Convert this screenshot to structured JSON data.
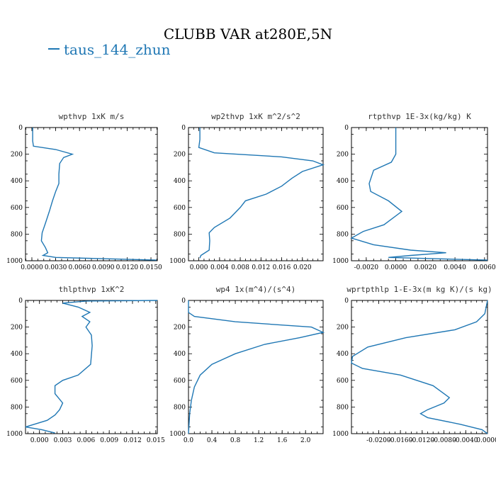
{
  "title": "CLUBB VAR at280E,5N",
  "legend": {
    "label": "taus_144_zhun",
    "color": "#1f77b4"
  },
  "chart_data": [
    {
      "type": "line",
      "title": "wpthvp  1xK m/s",
      "ylim": [
        1000,
        0
      ],
      "yticks": [
        "0",
        "200",
        "400",
        "600",
        "800",
        "1000"
      ],
      "xlim": [
        -0.0008,
        0.0158
      ],
      "xticks": [
        0.0,
        0.003,
        0.006,
        0.009,
        0.012,
        0.015
      ],
      "xticklabels": [
        "0.0000",
        "0.0030",
        "0.0060",
        "0.0090",
        "0.0120",
        "0.0150"
      ],
      "x": [
        0.0001,
        0.0001,
        0.0002,
        0.003,
        0.0051,
        0.004,
        0.0035,
        0.0034,
        0.0034,
        0.003,
        0.0026,
        0.0022,
        0.0017,
        0.0013,
        0.0012,
        0.0017,
        0.002,
        0.0014,
        0.003,
        0.0157
      ],
      "y": [
        0,
        100,
        140,
        165,
        200,
        225,
        270,
        350,
        420,
        480,
        550,
        630,
        720,
        790,
        850,
        900,
        940,
        960,
        975,
        995
      ]
    },
    {
      "type": "line",
      "title": "wp2thvp  1xK m^2/s^2",
      "ylim": [
        1000,
        0
      ],
      "yticks": [
        "0",
        "200",
        "400",
        "600",
        "800",
        "1000"
      ],
      "xlim": [
        -0.002,
        0.024
      ],
      "xticks": [
        0.0,
        0.004,
        0.008,
        0.012,
        0.016,
        0.02
      ],
      "xticklabels": [
        "0.000",
        "0.004",
        "0.008",
        "0.012",
        "0.016",
        "0.020"
      ],
      "x": [
        0.0002,
        0.0002,
        0.0,
        0.003,
        0.016,
        0.022,
        0.024,
        0.02,
        0.018,
        0.016,
        0.013,
        0.009,
        0.008,
        0.006,
        0.003,
        0.002,
        0.0021,
        0.002,
        0.0004,
        0.0002
      ],
      "y": [
        0,
        90,
        150,
        190,
        220,
        250,
        280,
        330,
        380,
        440,
        500,
        550,
        600,
        680,
        750,
        790,
        850,
        920,
        960,
        980
      ]
    },
    {
      "type": "line",
      "title": "rtpthvp  1E-3x(kg/kg) K",
      "ylim": [
        1000,
        0
      ],
      "yticks": [
        "0",
        "200",
        "400",
        "600",
        "800",
        "1000"
      ],
      "xlim": [
        -0.003,
        0.0062
      ],
      "xticks": [
        -0.002,
        0.0,
        0.002,
        0.004,
        0.006
      ],
      "xticklabels": [
        "-0.0020",
        "0.0000",
        "0.0020",
        "0.0040",
        "0.0060"
      ],
      "x": [
        0.0,
        0.0,
        -0.0003,
        -0.0015,
        -0.0018,
        -0.0017,
        -0.0005,
        0.0004,
        -0.0008,
        -0.0022,
        -0.003,
        -0.0015,
        0.001,
        0.0034,
        0.001,
        -0.0005,
        0.0062
      ],
      "y": [
        0,
        200,
        260,
        320,
        420,
        480,
        550,
        630,
        730,
        780,
        830,
        880,
        920,
        940,
        960,
        975,
        995
      ]
    },
    {
      "type": "line",
      "title": "thlpthvp  1xK^2",
      "ylim": [
        1000,
        0
      ],
      "yticks": [
        "0",
        "200",
        "400",
        "600",
        "800",
        "1000"
      ],
      "xlim": [
        -0.0018,
        0.0152
      ],
      "xticks": [
        0.0,
        0.003,
        0.006,
        0.009,
        0.012,
        0.015
      ],
      "xticklabels": [
        "0.000",
        "0.003",
        "0.006",
        "0.009",
        "0.012",
        "0.015"
      ],
      "x": [
        0.0152,
        0.006,
        0.003,
        0.005,
        0.0065,
        0.0055,
        0.0065,
        0.006,
        0.0067,
        0.0068,
        0.0066,
        0.005,
        0.003,
        0.002,
        0.002,
        0.003,
        0.0026,
        0.002,
        0.001,
        -0.0018,
        0.0003,
        0.002
      ],
      "y": [
        0,
        5,
        20,
        50,
        90,
        120,
        160,
        200,
        260,
        340,
        480,
        560,
        600,
        640,
        700,
        770,
        820,
        860,
        900,
        950,
        970,
        995
      ]
    },
    {
      "type": "line",
      "title": "wp4  1x(m^4)/(s^4)",
      "ylim": [
        1000,
        0
      ],
      "yticks": [
        "0",
        "200",
        "400",
        "600",
        "800",
        "1000"
      ],
      "xlim": [
        0.0,
        2.3
      ],
      "xticks": [
        0.0,
        0.4,
        0.8,
        1.2,
        1.6,
        2.0
      ],
      "xticklabels": [
        "0.0",
        "0.4",
        "0.8",
        "1.2",
        "1.6",
        "2.0"
      ],
      "x": [
        0.0,
        0.0,
        0.1,
        0.8,
        2.1,
        2.3,
        1.9,
        1.3,
        0.8,
        0.4,
        0.2,
        0.1,
        0.05,
        0.02,
        0.01,
        0.0
      ],
      "y": [
        0,
        90,
        120,
        160,
        200,
        240,
        280,
        330,
        400,
        480,
        560,
        650,
        750,
        850,
        930,
        1000
      ]
    },
    {
      "type": "line",
      "title": "wprtpthlp  1-E-3x(m kg K)/(s kg)",
      "ylim": [
        1000,
        0
      ],
      "yticks": [
        "0",
        "200",
        "400",
        "600",
        "800",
        "1000"
      ],
      "xlim": [
        -0.025,
        0.0
      ],
      "xticks": [
        -0.02,
        -0.016,
        -0.012,
        -0.008,
        -0.004,
        0.0
      ],
      "xticklabels": [
        "-0.0200",
        "-0.0160",
        "-0.0120",
        "-0.0080",
        "-0.0040",
        "0.0000"
      ],
      "x": [
        0.0,
        -0.0005,
        -0.002,
        -0.006,
        -0.015,
        -0.022,
        -0.0248,
        -0.025,
        -0.023,
        -0.016,
        -0.01,
        -0.008,
        -0.007,
        -0.008,
        -0.011,
        -0.0123,
        -0.011,
        -0.005,
        -0.001,
        0.0
      ],
      "y": [
        0,
        100,
        160,
        220,
        280,
        350,
        420,
        470,
        510,
        560,
        640,
        700,
        730,
        770,
        820,
        850,
        880,
        930,
        970,
        1000
      ]
    }
  ]
}
